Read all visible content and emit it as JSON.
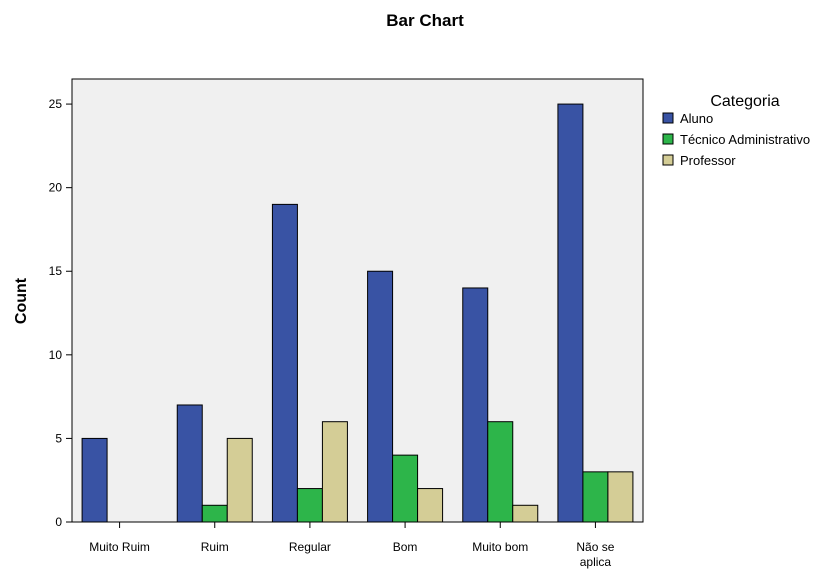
{
  "chart_data": {
    "type": "bar",
    "title": "Bar Chart",
    "xlabel": "",
    "ylabel": "Count",
    "ylim": [
      0,
      26.5
    ],
    "yticks": [
      0,
      5,
      10,
      15,
      20,
      25
    ],
    "grid": false,
    "legend_title": "Categoria",
    "legend_position": "top-right",
    "categories": [
      [
        "Muito Ruim"
      ],
      [
        "Ruim"
      ],
      [
        "Regular"
      ],
      [
        "Bom"
      ],
      [
        "Muito bom"
      ],
      [
        "Não se",
        "aplica"
      ]
    ],
    "series": [
      {
        "name": "Aluno",
        "color": "#3953A4",
        "values": [
          5,
          7,
          19,
          15,
          14,
          25
        ]
      },
      {
        "name": "Técnico Administrativo",
        "color": "#2DB54A",
        "values": [
          0,
          1,
          2,
          4,
          6,
          3
        ]
      },
      {
        "name": "Professor",
        "color": "#D4CD96",
        "values": [
          0,
          5,
          6,
          2,
          1,
          3
        ]
      }
    ]
  },
  "colors": {
    "plot_background": "#F0F0F0",
    "bar_stroke": "#000000"
  }
}
